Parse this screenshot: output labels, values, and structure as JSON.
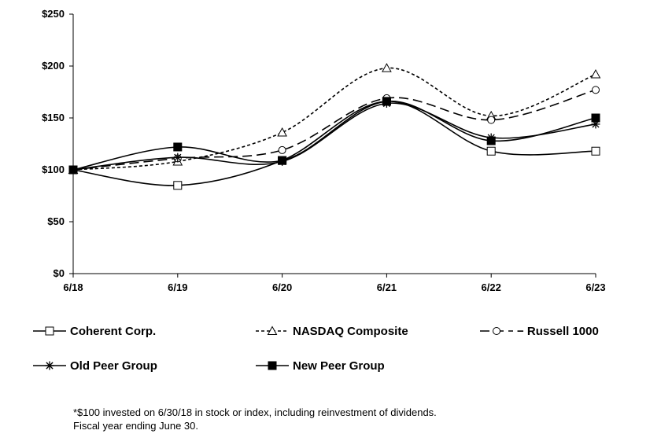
{
  "chart_data": {
    "type": "line",
    "categories": [
      "6/18",
      "6/19",
      "6/20",
      "6/21",
      "6/22",
      "6/23"
    ],
    "ylim": [
      0,
      250
    ],
    "yticks": [
      0,
      50,
      100,
      150,
      200,
      250
    ],
    "ytick_labels": [
      "$0",
      "$50",
      "$100",
      "$150",
      "$200",
      "$250"
    ],
    "legend_position": "bottom",
    "series": [
      {
        "name": "Coherent Corp.",
        "marker": "open-square",
        "dash": "solid",
        "values": [
          100,
          85,
          109,
          166,
          118,
          118
        ]
      },
      {
        "name": "NASDAQ Composite",
        "marker": "open-triangle",
        "dash": "dotted",
        "values": [
          100,
          108,
          136,
          198,
          152,
          192
        ]
      },
      {
        "name": "Russell 1000",
        "legend_label": "− Russell 1000",
        "marker": "open-circle",
        "dash": "dashed",
        "values": [
          100,
          111,
          119,
          169,
          148,
          177
        ]
      },
      {
        "name": "Old Peer Group",
        "marker": "asterisk",
        "dash": "solid",
        "values": [
          100,
          112,
          108,
          164,
          131,
          144
        ]
      },
      {
        "name": "New Peer Group",
        "marker": "filled-square",
        "dash": "solid",
        "values": [
          100,
          122,
          109,
          166,
          128,
          150
        ]
      }
    ]
  },
  "footnote": {
    "line1": "*$100 invested on 6/30/18 in stock or index, including reinvestment of dividends.",
    "line2": "Fiscal year ending June 30."
  }
}
